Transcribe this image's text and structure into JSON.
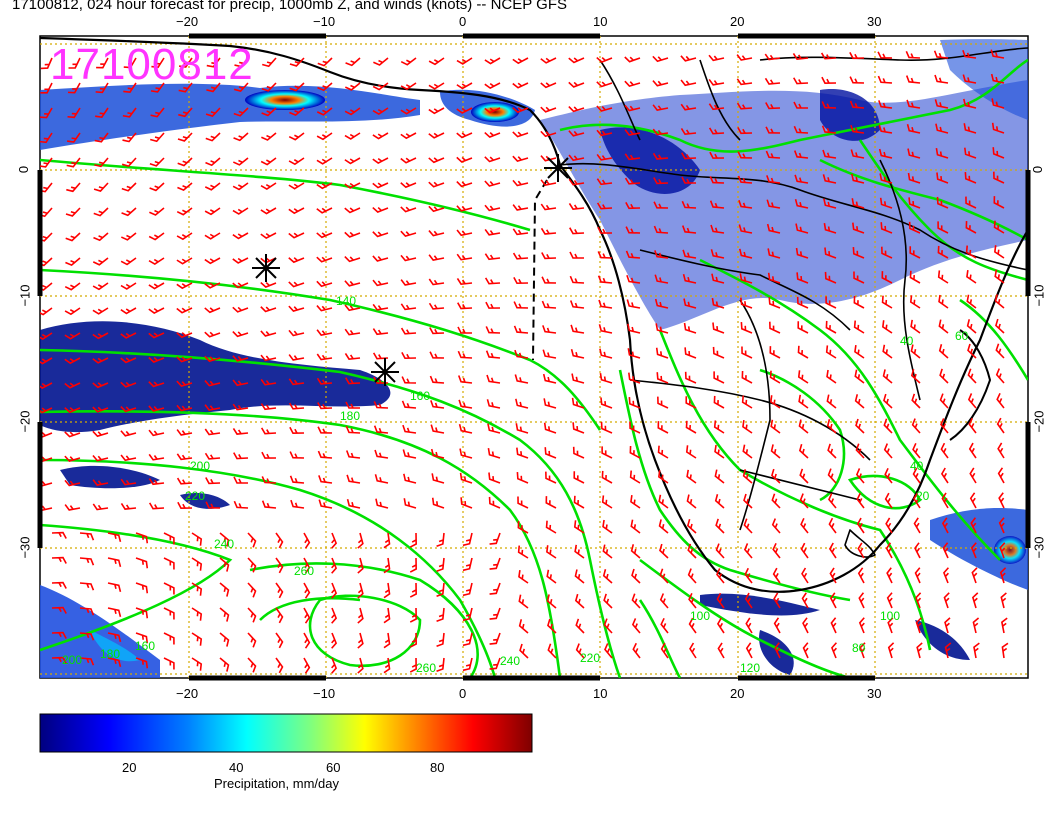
{
  "title": "17100812, 024 hour forecast for precip, 1000mb Z, and winds (knots) -- NCEP GFS",
  "stamp": "17100812",
  "lon_ticks": [
    "−20",
    "−10",
    "0",
    "10",
    "20",
    "30"
  ],
  "lat_ticks_left": [
    "0",
    "−10",
    "−20",
    "−30"
  ],
  "lat_ticks_right": [
    "0",
    "−10",
    "−20",
    "−30"
  ],
  "contour_labels": [
    "140",
    "160",
    "180",
    "200",
    "220",
    "240",
    "260",
    "260",
    "240",
    "220",
    "200",
    "180",
    "160",
    "120",
    "100",
    "100",
    "80",
    "40",
    "40",
    "20",
    "60"
  ],
  "colorbar": {
    "labels": [
      "20",
      "40",
      "60",
      "80"
    ],
    "title": "Precipitation, mm/day",
    "range": [
      0,
      100
    ],
    "stops": [
      "#00007f",
      "#0000ff",
      "#007fff",
      "#00ffff",
      "#7fff7f",
      "#ffff00",
      "#ff7f00",
      "#ff0000",
      "#7f0000"
    ]
  },
  "colors": {
    "contour": "#00e000",
    "barb": "#ff0000",
    "coast": "#000000",
    "grid": "#d4aa00",
    "stamp": "#ff33ff"
  }
}
